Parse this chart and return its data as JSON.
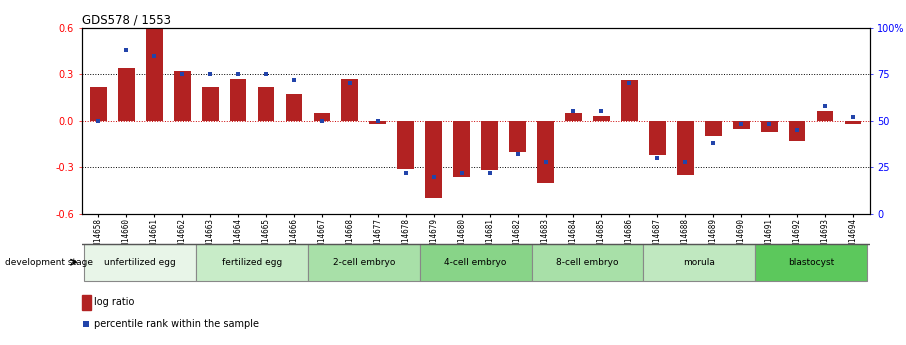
{
  "title": "GDS578 / 1553",
  "samples": [
    "GSM14658",
    "GSM14660",
    "GSM14661",
    "GSM14662",
    "GSM14663",
    "GSM14664",
    "GSM14665",
    "GSM14666",
    "GSM14667",
    "GSM14668",
    "GSM14677",
    "GSM14678",
    "GSM14679",
    "GSM14680",
    "GSM14681",
    "GSM14682",
    "GSM14683",
    "GSM14684",
    "GSM14685",
    "GSM14686",
    "GSM14687",
    "GSM14688",
    "GSM14689",
    "GSM14690",
    "GSM14691",
    "GSM14692",
    "GSM14693",
    "GSM14694"
  ],
  "log_ratio": [
    0.22,
    0.34,
    0.6,
    0.32,
    0.22,
    0.27,
    0.22,
    0.17,
    0.05,
    0.27,
    -0.02,
    -0.31,
    -0.5,
    -0.36,
    -0.32,
    -0.2,
    -0.4,
    0.05,
    0.03,
    0.26,
    -0.22,
    -0.35,
    -0.1,
    -0.05,
    -0.07,
    -0.13,
    0.06,
    -0.02
  ],
  "percentile": [
    50,
    88,
    85,
    75,
    75,
    75,
    75,
    72,
    50,
    70,
    50,
    22,
    20,
    22,
    22,
    32,
    28,
    55,
    55,
    70,
    30,
    28,
    38,
    48,
    48,
    45,
    58,
    52
  ],
  "stage_labels": [
    "unfertilized egg",
    "fertilized egg",
    "2-cell embryo",
    "4-cell embryo",
    "8-cell embryo",
    "morula",
    "blastocyst"
  ],
  "stage_ranges": [
    [
      0,
      4
    ],
    [
      4,
      8
    ],
    [
      8,
      12
    ],
    [
      12,
      16
    ],
    [
      16,
      20
    ],
    [
      20,
      24
    ],
    [
      24,
      28
    ]
  ],
  "stage_colors": [
    "#e8f8e8",
    "#c8ecc8",
    "#a8e0a8",
    "#88d488",
    "#a8e0a8",
    "#c8ecc8",
    "#78cc78"
  ],
  "bar_color": "#b22222",
  "dot_color": "#2244aa",
  "ylim": [
    -0.6,
    0.6
  ],
  "y2lim": [
    0,
    100
  ],
  "yticks": [
    -0.6,
    -0.3,
    0.0,
    0.3,
    0.6
  ],
  "y2ticks": [
    0,
    25,
    50,
    75,
    100
  ],
  "y2ticklabels": [
    "0",
    "25",
    "50",
    "75",
    "100%"
  ],
  "hlines_dotted": [
    -0.3,
    0.3
  ],
  "hline_red": 0.0,
  "legend_log_ratio": "log ratio",
  "legend_percentile": "percentile rank within the sample"
}
